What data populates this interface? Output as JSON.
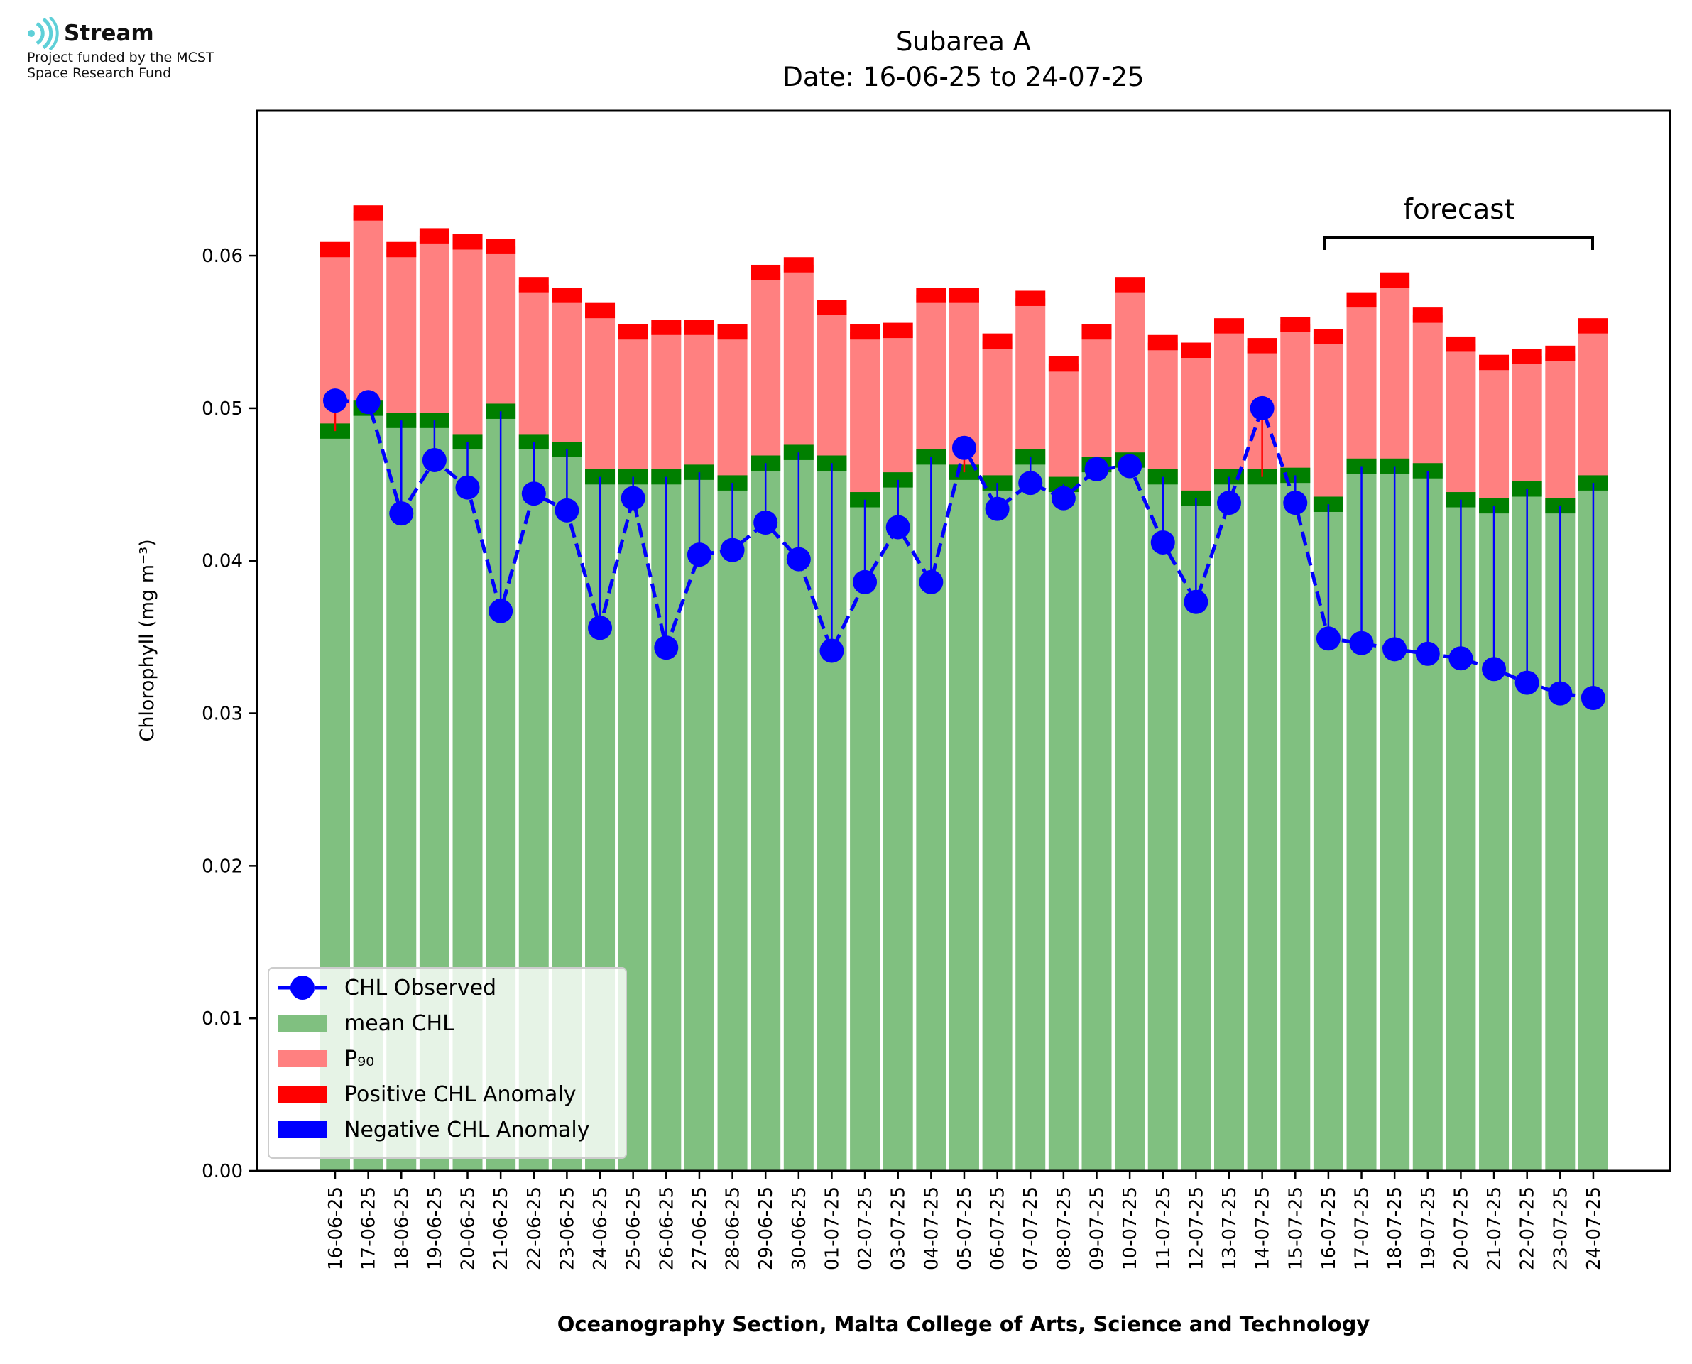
{
  "logo": {
    "name": "Stream",
    "subtitle_line1": "Project funded by the MCST",
    "subtitle_line2": "Space Research Fund",
    "color": "#5fd0d8"
  },
  "annotation": {
    "forecast": "forecast"
  },
  "chart_data": {
    "type": "bar",
    "title": "Subarea A",
    "subtitle": "Date: 16-06-25 to 24-07-25",
    "xlabel": "Oceanography Section, Malta College of Arts, Science and Technology",
    "ylabel": "Chlorophyll (mg m⁻³)",
    "ylim": [
      0,
      0.0695
    ],
    "yticks": [
      0.0,
      0.01,
      0.02,
      0.03,
      0.04,
      0.05,
      0.06
    ],
    "ytick_labels": [
      "0.00",
      "0.01",
      "0.02",
      "0.03",
      "0.04",
      "0.05",
      "0.06"
    ],
    "grid": false,
    "legend_position": "lower-left",
    "categories": [
      "16-06-25",
      "17-06-25",
      "18-06-25",
      "19-06-25",
      "20-06-25",
      "21-06-25",
      "22-06-25",
      "23-06-25",
      "24-06-25",
      "25-06-25",
      "26-06-25",
      "27-06-25",
      "28-06-25",
      "29-06-25",
      "30-06-25",
      "01-07-25",
      "02-07-25",
      "03-07-25",
      "04-07-25",
      "05-07-25",
      "06-07-25",
      "07-07-25",
      "08-07-25",
      "09-07-25",
      "10-07-25",
      "11-07-25",
      "12-07-25",
      "13-07-25",
      "14-07-25",
      "15-07-25",
      "16-07-25",
      "17-07-25",
      "18-07-25",
      "19-07-25",
      "20-07-25",
      "21-07-25",
      "22-07-25",
      "23-07-25",
      "24-07-25"
    ],
    "forecast_range": [
      "16-07-25",
      "24-07-25"
    ],
    "series": [
      {
        "name": "CHL Observed",
        "type": "line",
        "color": "#0000ff",
        "values": [
          0.0505,
          0.0504,
          0.0431,
          0.0466,
          0.0448,
          0.0367,
          0.0444,
          0.0433,
          0.0356,
          0.0441,
          0.0343,
          0.0404,
          0.0407,
          0.0425,
          0.0401,
          0.0341,
          0.0386,
          0.0422,
          0.0386,
          0.0474,
          0.0434,
          0.0451,
          0.0441,
          0.046,
          0.0462,
          0.0412,
          0.0373,
          0.0438,
          0.05,
          0.0438,
          0.0349,
          0.0346,
          0.0342,
          0.0339,
          0.0336,
          0.0329,
          0.032,
          0.0313,
          0.031
        ]
      },
      {
        "name": "mean CHL",
        "type": "bar",
        "color": "#80c080",
        "values": [
          0.0485,
          0.05,
          0.0492,
          0.0492,
          0.0478,
          0.0498,
          0.0478,
          0.0473,
          0.0455,
          0.0455,
          0.0455,
          0.0458,
          0.0451,
          0.0464,
          0.0471,
          0.0464,
          0.044,
          0.0453,
          0.0468,
          0.0458,
          0.0451,
          0.0468,
          0.045,
          0.0463,
          0.0466,
          0.0455,
          0.0441,
          0.0455,
          0.0455,
          0.0456,
          0.0437,
          0.0462,
          0.0462,
          0.0459,
          0.044,
          0.0436,
          0.0447,
          0.0436,
          0.0451
        ]
      },
      {
        "name": "P₉₀",
        "type": "bar",
        "color": "#ff8080",
        "values": [
          0.0604,
          0.0628,
          0.0604,
          0.0613,
          0.0609,
          0.0606,
          0.0581,
          0.0574,
          0.0564,
          0.055,
          0.0553,
          0.0553,
          0.055,
          0.0589,
          0.0594,
          0.0566,
          0.055,
          0.0551,
          0.0574,
          0.0574,
          0.0544,
          0.0572,
          0.0529,
          0.055,
          0.0581,
          0.0543,
          0.0538,
          0.0554,
          0.0541,
          0.0555,
          0.0547,
          0.0571,
          0.0584,
          0.0561,
          0.0542,
          0.053,
          0.0534,
          0.0536,
          0.0554
        ]
      },
      {
        "name": "Positive CHL Anomaly",
        "type": "band",
        "color": "#ff0000"
      },
      {
        "name": "Negative CHL Anomaly",
        "type": "band",
        "color": "#0000ff"
      }
    ],
    "mean_band_color": "#007f00",
    "band_half_width": 0.0005
  }
}
